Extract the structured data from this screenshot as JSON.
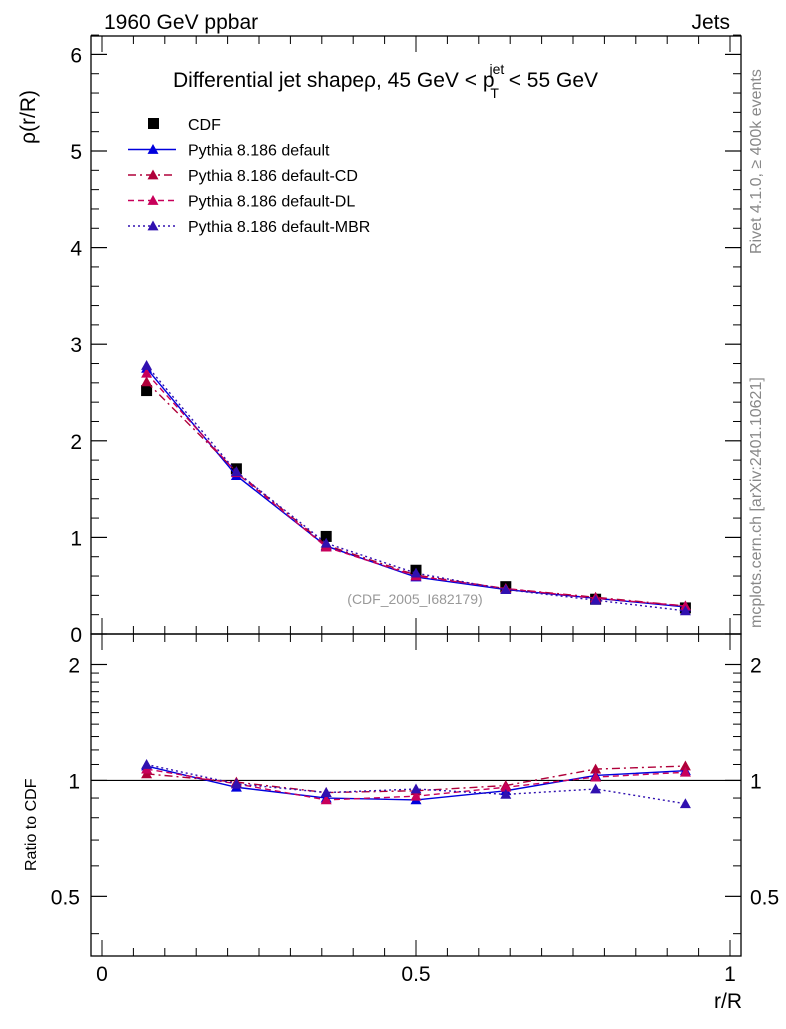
{
  "header": {
    "left": "1960 GeV ppbar",
    "right": "Jets"
  },
  "side_text": {
    "rivet": "Rivet 4.1.0, ≥ 400k events",
    "mcplots": "mcplots.cern.ch [arXiv:2401.10621]"
  },
  "chart_data": [
    {
      "type": "line",
      "panel": "main",
      "title": "Differential jet shapeρ, 45 GeV < p",
      "title_sup": "jet",
      "title_sub": "T",
      "title_tail": " < 55 GeV",
      "ylabel": "ρ(r/R)",
      "xlabel": "",
      "xlim": [
        0,
        1
      ],
      "ylim": [
        0,
        6.25
      ],
      "yticks": [
        0,
        1,
        2,
        3,
        4,
        5,
        6
      ],
      "ytick_labels": [
        "0",
        "1",
        "2",
        "3",
        "4",
        "5",
        "6"
      ],
      "watermark": "(CDF_2005_I682179)",
      "x": [
        0.071,
        0.214,
        0.357,
        0.5,
        0.643,
        0.786,
        0.929
      ],
      "series": [
        {
          "name": "CDF",
          "style": "data",
          "color": "#000000",
          "values": [
            2.52,
            1.71,
            1.01,
            0.66,
            0.49,
            0.36,
            0.27
          ]
        },
        {
          "name": "Pythia 8.186 default",
          "style": "solid",
          "color": "#0000dd",
          "values": [
            2.75,
            1.64,
            0.91,
            0.59,
            0.46,
            0.37,
            0.28
          ]
        },
        {
          "name": "Pythia 8.186 default-CD",
          "style": "dashdot",
          "color": "#b0003a",
          "values": [
            2.61,
            1.68,
            0.92,
            0.61,
            0.47,
            0.38,
            0.29
          ]
        },
        {
          "name": "Pythia 8.186 default-DL",
          "style": "dashed",
          "color": "#c8005a",
          "values": [
            2.7,
            1.67,
            0.9,
            0.6,
            0.47,
            0.37,
            0.29
          ]
        },
        {
          "name": "Pythia 8.186 default-MBR",
          "style": "dotted",
          "color": "#3010b0",
          "values": [
            2.78,
            1.68,
            0.94,
            0.63,
            0.46,
            0.35,
            0.24
          ]
        }
      ]
    },
    {
      "type": "line",
      "panel": "ratio",
      "ylabel": "Ratio to CDF",
      "xlabel": "r/R",
      "xlim": [
        0,
        1
      ],
      "ylim": [
        0.35,
        2.4
      ],
      "yscale": "log",
      "yticks": [
        0.5,
        1,
        2
      ],
      "ytick_labels": [
        "0.5",
        "1",
        "2"
      ],
      "xticks": [
        0,
        0.5,
        1
      ],
      "xtick_labels": [
        "0",
        "0.5",
        "1"
      ],
      "x": [
        0.071,
        0.214,
        0.357,
        0.5,
        0.643,
        0.786,
        0.929
      ],
      "series": [
        {
          "name": "Pythia 8.186 default",
          "style": "solid",
          "color": "#0000dd",
          "values": [
            1.09,
            0.96,
            0.9,
            0.89,
            0.94,
            1.03,
            1.06
          ]
        },
        {
          "name": "Pythia 8.186 default-CD",
          "style": "dashdot",
          "color": "#b0003a",
          "values": [
            1.04,
            0.99,
            0.93,
            0.94,
            0.97,
            1.07,
            1.09
          ]
        },
        {
          "name": "Pythia 8.186 default-DL",
          "style": "dashed",
          "color": "#c8005a",
          "values": [
            1.07,
            0.98,
            0.89,
            0.91,
            0.96,
            1.02,
            1.05
          ]
        },
        {
          "name": "Pythia 8.186 default-MBR",
          "style": "dotted",
          "color": "#3010b0",
          "values": [
            1.1,
            0.98,
            0.93,
            0.95,
            0.92,
            0.95,
            0.87
          ]
        }
      ]
    }
  ]
}
